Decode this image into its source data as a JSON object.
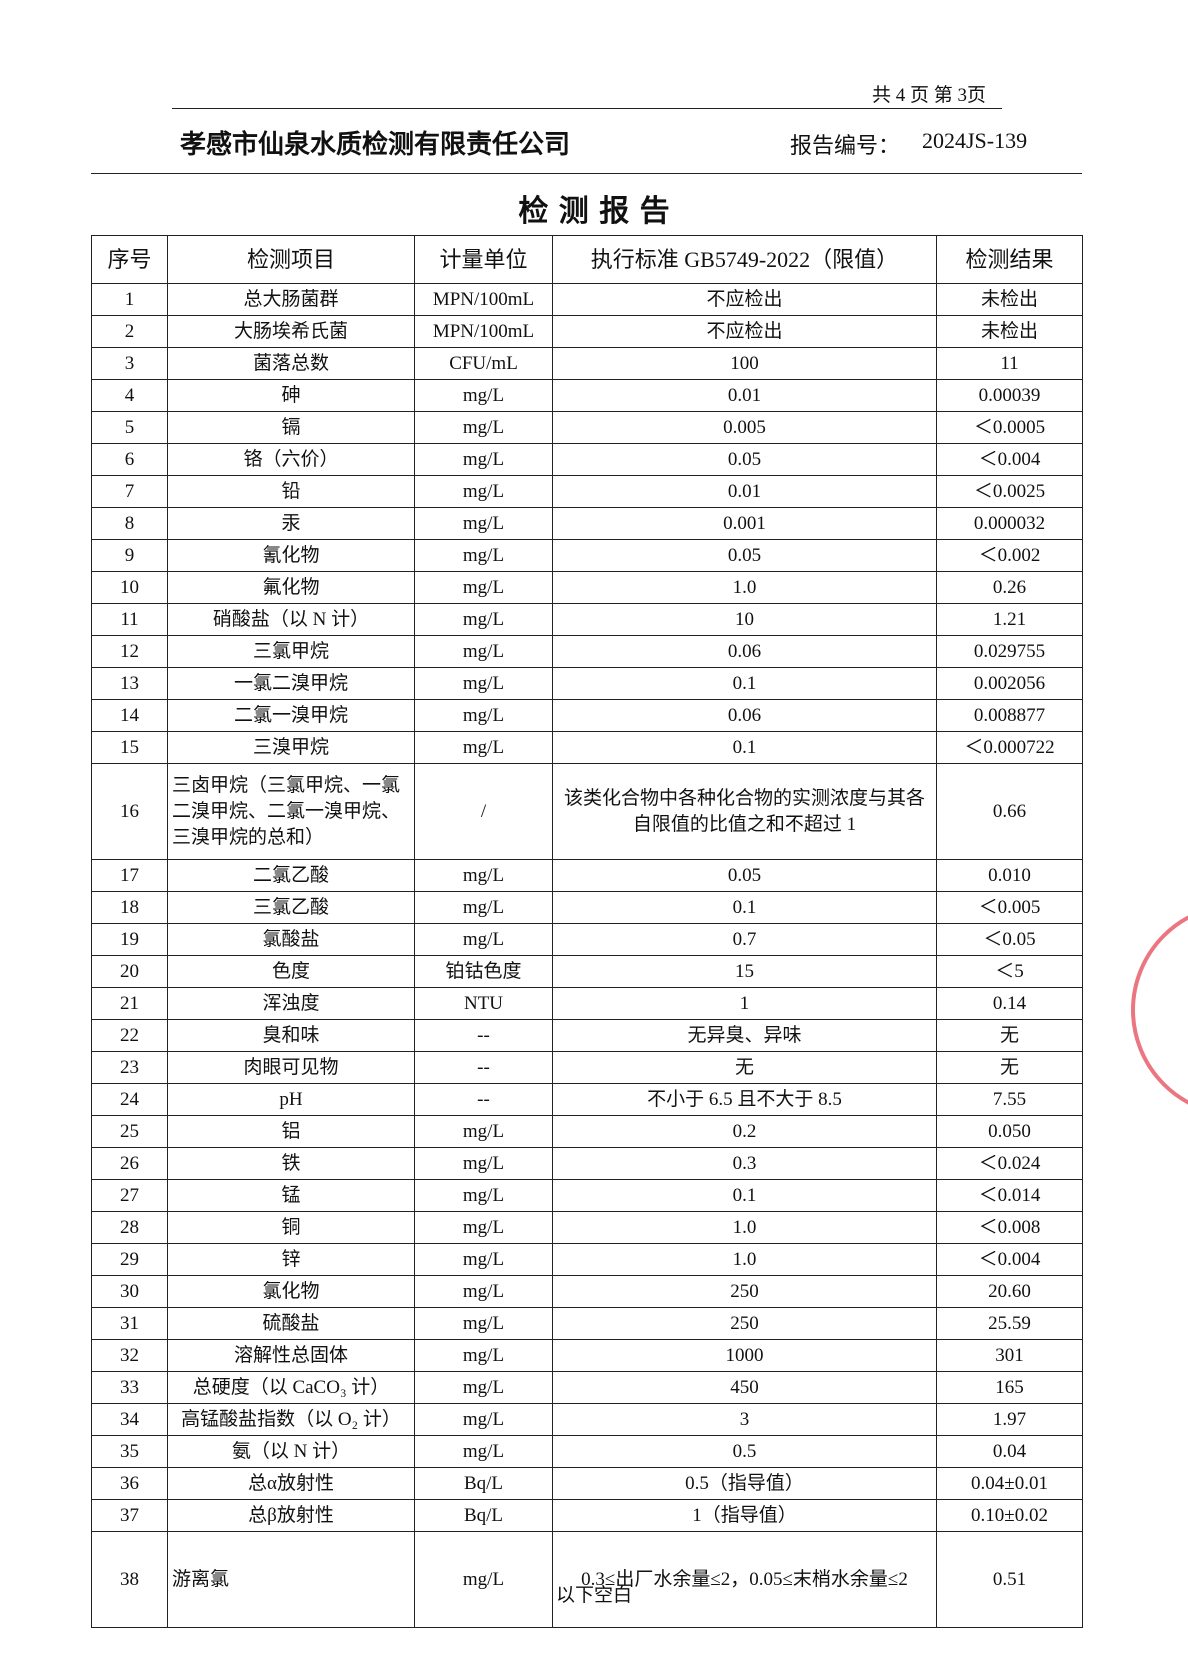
{
  "header": {
    "page_info": "共 4 页  第 3页",
    "company": "孝感市仙泉水质检测有限责任公司",
    "report_no_label": "报告编号：",
    "report_no": "2024JS-139"
  },
  "title": "检  测  报  告",
  "table": {
    "columns": [
      "序号",
      "检测项目",
      "计量单位",
      "执行标准 GB5749-2022（限值）",
      "检测结果"
    ],
    "rows": [
      [
        "1",
        "总大肠菌群",
        "MPN/100mL",
        "不应检出",
        "未检出"
      ],
      [
        "2",
        "大肠埃希氏菌",
        "MPN/100mL",
        "不应检出",
        "未检出"
      ],
      [
        "3",
        "菌落总数",
        "CFU/mL",
        "100",
        "11"
      ],
      [
        "4",
        "砷",
        "mg/L",
        "0.01",
        "0.00039"
      ],
      [
        "5",
        "镉",
        "mg/L",
        "0.005",
        "＜0.0005"
      ],
      [
        "6",
        "铬（六价）",
        "mg/L",
        "0.05",
        "＜0.004"
      ],
      [
        "7",
        "铅",
        "mg/L",
        "0.01",
        "＜0.0025"
      ],
      [
        "8",
        "汞",
        "mg/L",
        "0.001",
        "0.000032"
      ],
      [
        "9",
        "氰化物",
        "mg/L",
        "0.05",
        "＜0.002"
      ],
      [
        "10",
        "氟化物",
        "mg/L",
        "1.0",
        "0.26"
      ],
      [
        "11",
        "硝酸盐（以 N 计）",
        "mg/L",
        "10",
        "1.21"
      ],
      [
        "12",
        "三氯甲烷",
        "mg/L",
        "0.06",
        "0.029755"
      ],
      [
        "13",
        "一氯二溴甲烷",
        "mg/L",
        "0.1",
        "0.002056"
      ],
      [
        "14",
        "二氯一溴甲烷",
        "mg/L",
        "0.06",
        "0.008877"
      ],
      [
        "15",
        "三溴甲烷",
        "mg/L",
        "0.1",
        "＜0.000722"
      ],
      [
        "16",
        "三卤甲烷（三氯甲烷、一氯二溴甲烷、二氯一溴甲烷、三溴甲烷的总和）",
        "/",
        "该类化合物中各种化合物的实测浓度与其各自限值的比值之和不超过 1",
        "0.66"
      ],
      [
        "17",
        "二氯乙酸",
        "mg/L",
        "0.05",
        "0.010"
      ],
      [
        "18",
        "三氯乙酸",
        "mg/L",
        "0.1",
        "＜0.005"
      ],
      [
        "19",
        "氯酸盐",
        "mg/L",
        "0.7",
        "＜0.05"
      ],
      [
        "20",
        "色度",
        "铂钴色度",
        "15",
        "＜5"
      ],
      [
        "21",
        "浑浊度",
        "NTU",
        "1",
        "0.14"
      ],
      [
        "22",
        "臭和味",
        "--",
        "无异臭、异味",
        "无"
      ],
      [
        "23",
        "肉眼可见物",
        "--",
        "无",
        "无"
      ],
      [
        "24",
        "pH",
        "--",
        "不小于 6.5 且不大于 8.5",
        "7.55"
      ],
      [
        "25",
        "铝",
        "mg/L",
        "0.2",
        "0.050"
      ],
      [
        "26",
        "铁",
        "mg/L",
        "0.3",
        "＜0.024"
      ],
      [
        "27",
        "锰",
        "mg/L",
        "0.1",
        "＜0.014"
      ],
      [
        "28",
        "铜",
        "mg/L",
        "1.0",
        "＜0.008"
      ],
      [
        "29",
        "锌",
        "mg/L",
        "1.0",
        "＜0.004"
      ],
      [
        "30",
        "氯化物",
        "mg/L",
        "250",
        "20.60"
      ],
      [
        "31",
        "硫酸盐",
        "mg/L",
        "250",
        "25.59"
      ],
      [
        "32",
        "溶解性总固体",
        "mg/L",
        "1000",
        "301"
      ],
      [
        "33",
        "总硬度（以 CaCO₃ 计）",
        "mg/L",
        "450",
        "165"
      ],
      [
        "34",
        "高锰酸盐指数（以 O₂ 计）",
        "mg/L",
        "3",
        "1.97"
      ],
      [
        "35",
        "氨（以 N 计）",
        "mg/L",
        "0.5",
        "0.04"
      ],
      [
        "36",
        "总α放射性",
        "Bq/L",
        "0.5（指导值）",
        "0.04±0.01"
      ],
      [
        "37",
        "总β放射性",
        "Bq/L",
        "1（指导值）",
        "0.10±0.02"
      ],
      [
        "38",
        "游离氯",
        "mg/L",
        "0.3≤出厂水余量≤2，0.05≤末梢水余量≤2",
        "0.51"
      ]
    ]
  },
  "footer": "以下空白"
}
